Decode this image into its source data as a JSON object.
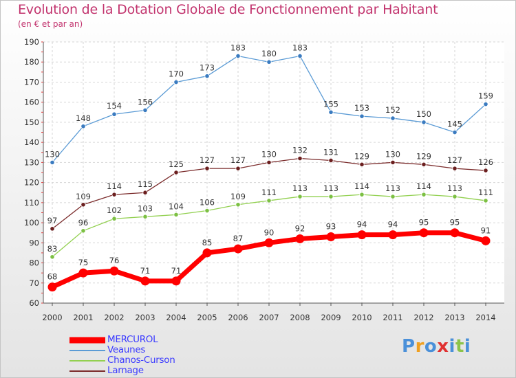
{
  "title": "Evolution de la Dotation Globale de Fonctionnement par Habitant",
  "subtitle": "(en € et par an)",
  "chart_data": {
    "type": "line",
    "title": "Evolution de la Dotation Globale de Fonctionnement par Habitant",
    "subtitle": "(en € et par an)",
    "x": [
      "2000",
      "2001",
      "2002",
      "2003",
      "2004",
      "2005",
      "2006",
      "2007",
      "2008",
      "2009",
      "2010",
      "2011",
      "2012",
      "2013",
      "2014"
    ],
    "y_ticks": [
      60,
      70,
      80,
      90,
      100,
      110,
      120,
      130,
      140,
      150,
      160,
      170,
      180,
      190
    ],
    "ylim": [
      60,
      190
    ],
    "grid": true,
    "legend": "bottom-left",
    "series": [
      {
        "name": "Veaunes",
        "color": "#5b9bd5",
        "marker": "#3a7bc0",
        "values": [
          130,
          148,
          154,
          156,
          170,
          173,
          183,
          180,
          183,
          155,
          153,
          152,
          150,
          145,
          159
        ]
      },
      {
        "name": "Larnage",
        "color": "#7a2a2a",
        "marker": "#6b1f1f",
        "values": [
          97,
          109,
          114,
          115,
          125,
          127,
          127,
          130,
          132,
          131,
          129,
          130,
          129,
          127,
          126
        ]
      },
      {
        "name": "Chanos-Curson",
        "color": "#92d050",
        "marker": "#7cc043",
        "values": [
          83,
          96,
          102,
          103,
          104,
          106,
          109,
          111,
          113,
          113,
          114,
          113,
          114,
          113,
          111
        ]
      },
      {
        "name": "MERCUROL",
        "color": "#ff0000",
        "marker": "#ff0000",
        "values": [
          68,
          75,
          76,
          71,
          71,
          85,
          87,
          90,
          92,
          93,
          94,
          94,
          95,
          95,
          91
        ]
      }
    ]
  },
  "legend": [
    {
      "label": "MERCUROL",
      "color": "#ff0000",
      "text_color": "#3b3bff",
      "thick": true
    },
    {
      "label": "Veaunes",
      "color": "#5b9bd5",
      "text_color": "#3b3bff",
      "thick": false
    },
    {
      "label": "Chanos-Curson",
      "color": "#92d050",
      "text_color": "#3b3bff",
      "thick": false
    },
    {
      "label": "Larnage",
      "color": "#7a2a2a",
      "text_color": "#3b3bff",
      "thick": false
    }
  ],
  "logo": {
    "letters": [
      "P",
      "r",
      "o",
      "x",
      "i",
      "t",
      "i"
    ],
    "colors": [
      "#4a90d9",
      "#f0a020",
      "#4a90d9",
      "#e03030",
      "#4a90d9",
      "#8bc34a",
      "#4a90d9"
    ]
  }
}
